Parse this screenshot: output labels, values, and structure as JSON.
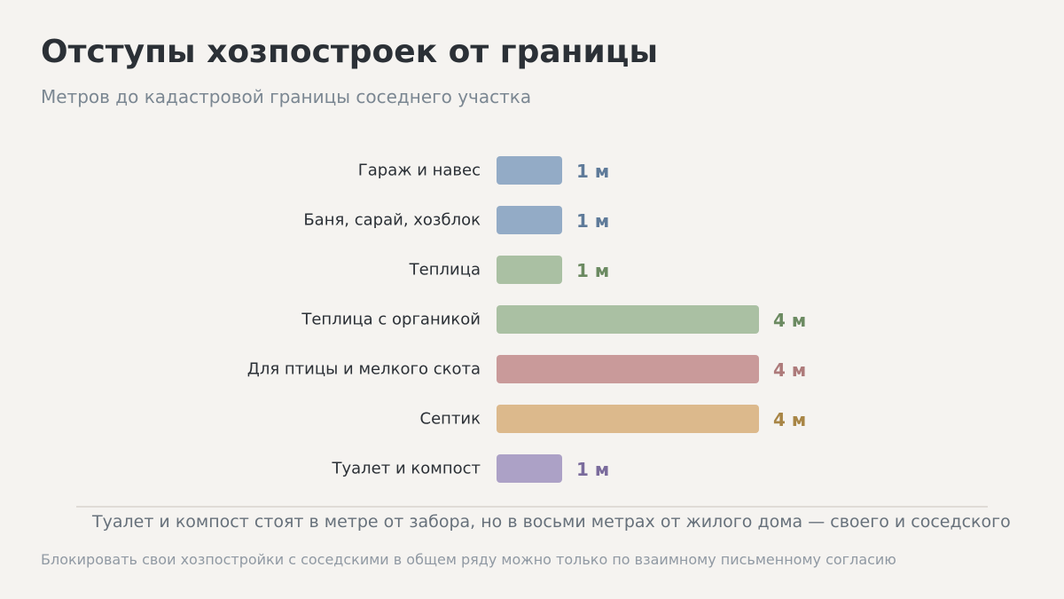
{
  "header": {
    "title": "Отступы хозпостроек от границы",
    "subtitle": "Метров до кадастровой границы соседнего участка"
  },
  "chart_data": {
    "type": "bar",
    "orientation": "horizontal",
    "categories": [
      "Гараж и навес",
      "Баня, сарай, хозблок",
      "Теплица",
      "Теплица с органикой",
      "Для птицы и мелкого скота",
      "Септик",
      "Туалет и компост"
    ],
    "values": [
      1,
      1,
      1,
      4,
      4,
      4,
      1
    ],
    "unit": "м",
    "data_labels": [
      "1 м",
      "1 м",
      "1 м",
      "4 м",
      "4 м",
      "4 м",
      "1 м"
    ],
    "bar_colors": [
      "#93abc6",
      "#93abc6",
      "#aac0a3",
      "#aac0a3",
      "#c99a9a",
      "#dcb98c",
      "#aca1c6"
    ],
    "label_colors": [
      "#5e7a99",
      "#5e7a99",
      "#6b8a61",
      "#6b8a61",
      "#ad7a7a",
      "#a88545",
      "#7a6b9c"
    ],
    "xlim": [
      0,
      4
    ],
    "grid": false,
    "legend": "none"
  },
  "footnote": {
    "note": "Туалет и компост стоят в метре от забора, но в восьми метрах от жилого дома — своего и соседского",
    "footer": "Блокировать свои хозпостройки с соседскими в общем ряду можно только по взаимному письменному согласию"
  }
}
